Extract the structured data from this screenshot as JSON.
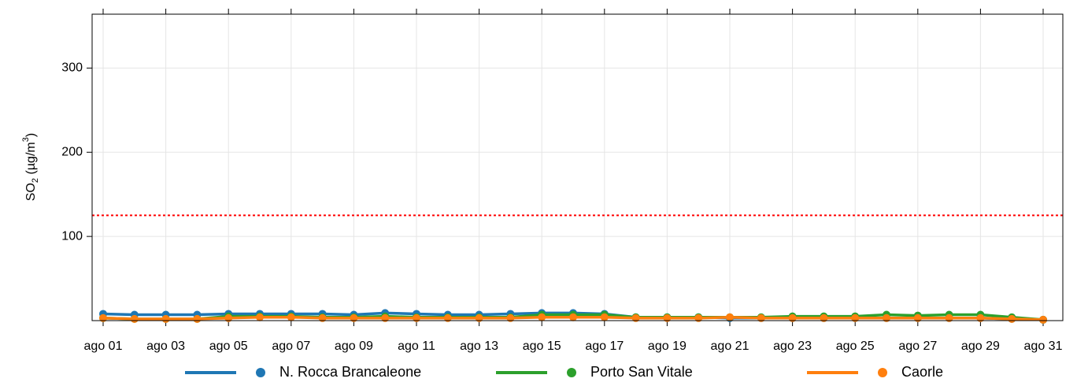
{
  "chart_data": {
    "type": "line",
    "y_label": {
      "text": "SO",
      "sub": "2",
      "mid": " (µg/m",
      "sup": "3",
      "end": ")"
    },
    "categories": [
      "ago 01",
      null,
      "ago 03",
      null,
      "ago 05",
      null,
      "ago 07",
      null,
      "ago 09",
      null,
      "ago 11",
      null,
      "ago 13",
      null,
      "ago 15",
      null,
      "ago 17",
      null,
      "ago 19",
      null,
      "ago 21",
      null,
      "ago 23",
      null,
      "ago 25",
      null,
      "ago 27",
      null,
      "ago 29",
      null,
      "ago 31"
    ],
    "ylim": [
      0,
      364
    ],
    "yticks": [
      100,
      200,
      300
    ],
    "grid": true,
    "threshold": {
      "value": 125,
      "color": "#ff0000"
    },
    "legend": "bottom",
    "series": [
      {
        "name": "N. Rocca Brancaleone",
        "color": "#1f77b4",
        "values": [
          8,
          7,
          7,
          7,
          8,
          8,
          8,
          8,
          7,
          9,
          8,
          7,
          7,
          8,
          9,
          9,
          8,
          4,
          4,
          4,
          3,
          3,
          3,
          3,
          3,
          3,
          3,
          3,
          3,
          2,
          1
        ]
      },
      {
        "name": "Porto San Vitale",
        "color": "#2ca02c",
        "values": [
          3,
          2,
          2,
          2,
          5,
          5,
          5,
          4,
          4,
          5,
          4,
          4,
          4,
          4,
          7,
          7,
          7,
          4,
          4,
          4,
          4,
          4,
          5,
          5,
          5,
          7,
          6,
          7,
          7,
          4,
          1
        ]
      },
      {
        "name": "Caorle",
        "color": "#ff7f0e",
        "values": [
          3,
          2,
          2,
          2,
          3,
          4,
          4,
          3,
          3,
          3,
          3,
          3,
          3,
          3,
          4,
          4,
          4,
          3,
          3,
          3,
          4,
          3,
          3,
          3,
          3,
          3,
          3,
          3,
          3,
          2,
          1
        ]
      }
    ]
  }
}
